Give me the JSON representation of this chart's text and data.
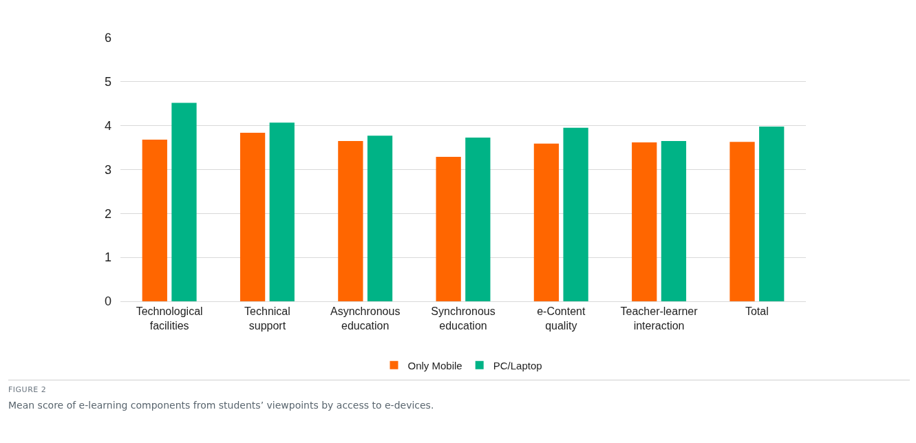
{
  "chart_data": {
    "type": "bar",
    "categories": [
      "Technological facilities",
      "Technical support",
      "Asynchronous education",
      "Synchronous education",
      "e-Content quality",
      "Teacher-learner interaction",
      "Total"
    ],
    "series": [
      {
        "name": "Only Mobile",
        "color": "#ff6600",
        "values": [
          3.68,
          3.84,
          3.65,
          3.29,
          3.59,
          3.62,
          3.63
        ]
      },
      {
        "name": "PC/Laptop",
        "color": "#00b386",
        "values": [
          4.52,
          4.07,
          3.77,
          3.73,
          3.95,
          3.65,
          3.98
        ]
      }
    ],
    "ylim": [
      0,
      6
    ],
    "yticks": [
      0,
      1,
      2,
      3,
      4,
      5,
      6
    ],
    "grid": "y",
    "legend": "bottom",
    "annotations": [
      "FIGURE 2",
      "Mean score of e-learning components from students’ viewpoints by access to e-devices."
    ]
  }
}
